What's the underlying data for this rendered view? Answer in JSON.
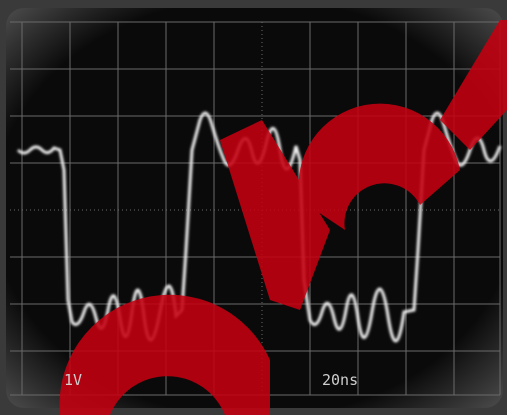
{
  "screen": {
    "voltage_scale": "1V",
    "time_scale": "20ns"
  }
}
